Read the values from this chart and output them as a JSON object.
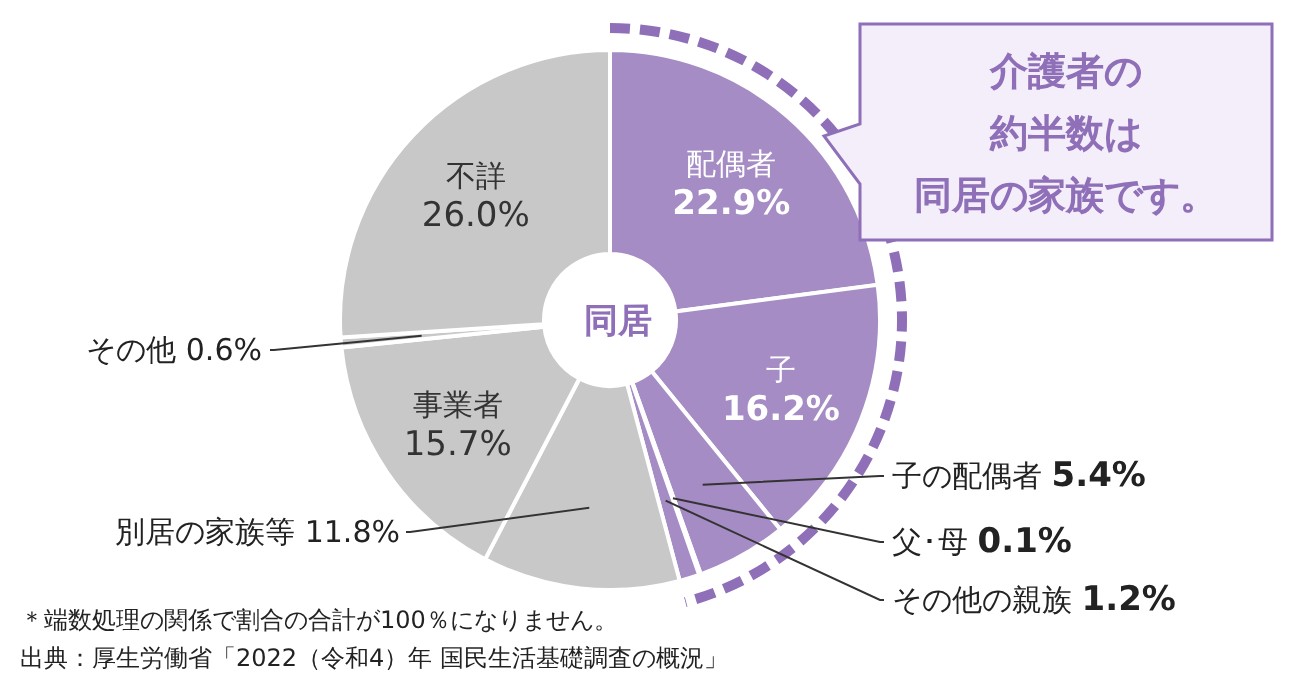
{
  "chart_data": {
    "type": "donut",
    "categories": [
      "配偶者",
      "子",
      "子の配偶者",
      "父･母",
      "その他の親族",
      "別居の家族等",
      "事業者",
      "その他",
      "不詳"
    ],
    "values": [
      22.9,
      16.2,
      5.4,
      0.1,
      1.2,
      11.8,
      15.7,
      0.6,
      26.0
    ],
    "value_labels": [
      "22.9%",
      "16.2%",
      "5.4%",
      "0.1%",
      "1.2%",
      "11.8%",
      "15.7%",
      "0.6%",
      "26.0%"
    ],
    "colors": [
      "#a58cc4",
      "#a58cc4",
      "#a58cc4",
      "#a58cc4",
      "#a58cc4",
      "#c8c8c8",
      "#c8c8c8",
      "#c8c8c8",
      "#c8c8c8"
    ],
    "legend": false,
    "annotations": [
      "同居",
      "介護者の",
      "約半数は",
      "同居の家族です。",
      "＊端数処理の関係で割合の合計が100％になりません。",
      "出典：厚生労働省「2022（令和4）年 国民生活基礎調査の概況」"
    ]
  }
}
